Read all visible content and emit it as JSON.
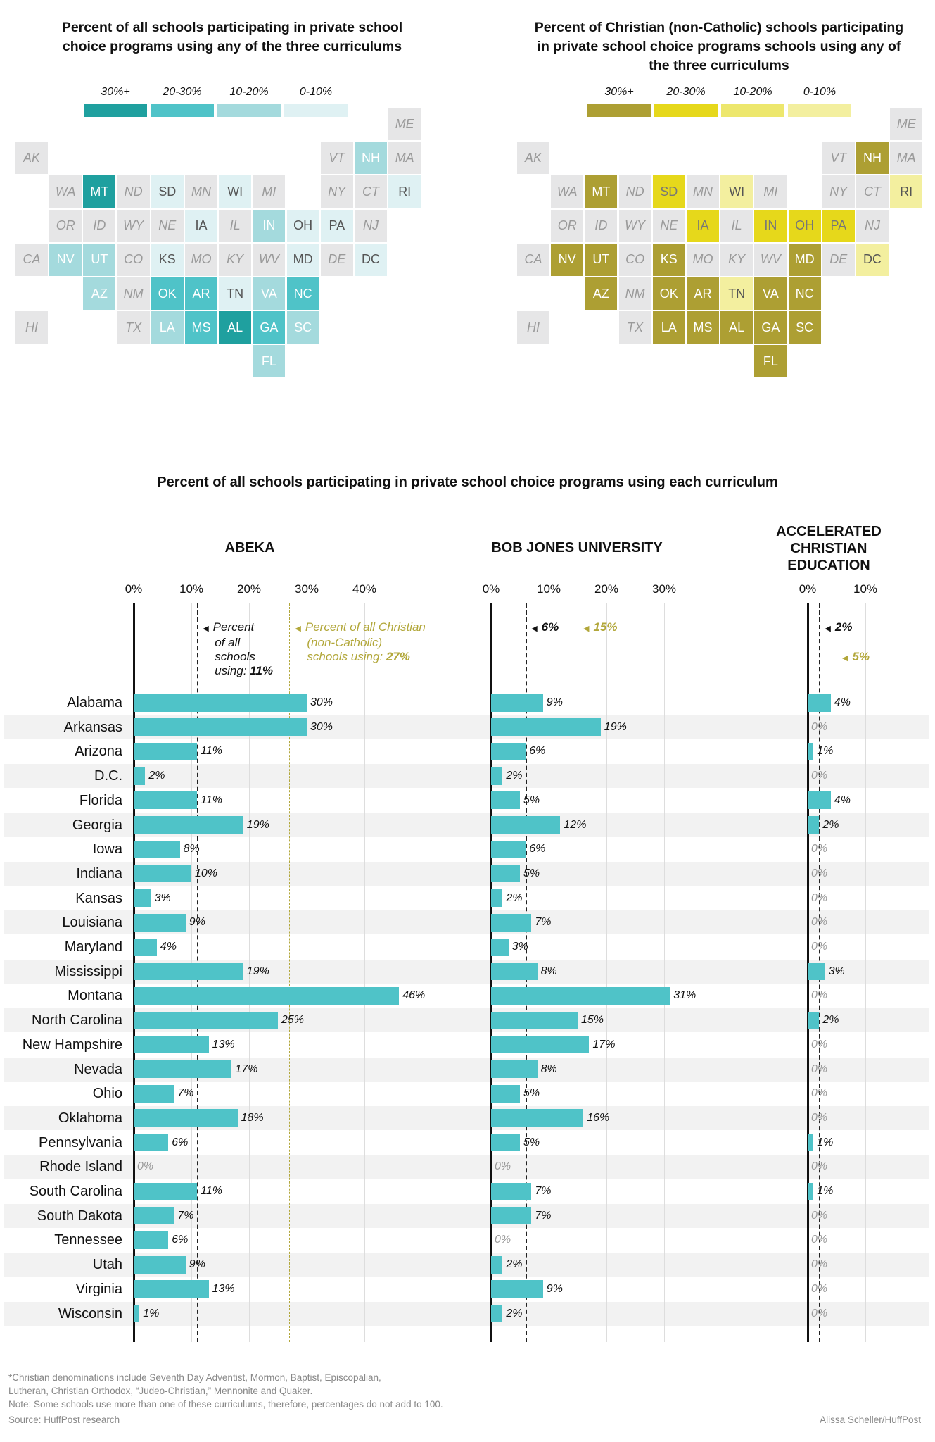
{
  "maps": [
    {
      "title": "Percent of all schools participating in private school choice programs using any of the three curriculums",
      "legend": [
        "30%+",
        "20-30%",
        "10-20%",
        "0-10%"
      ],
      "colors": {
        "30%+": "#1fa09f",
        "20-30%": "#4fc3c8",
        "10-20%": "#a4dadd",
        "0-10%": "#dff1f3"
      },
      "text_colors": {
        "30%+": "#ffffff",
        "20-30%": "#ffffff",
        "10-20%": "#ffffff",
        "0-10%": "#555555"
      },
      "tiers": {
        "MT": "30%+",
        "AL": "30%+",
        "OK": "20-30%",
        "AR": "20-30%",
        "MS": "20-30%",
        "GA": "20-30%",
        "NC": "20-30%",
        "NH": "10-20%",
        "IN": "10-20%",
        "NV": "10-20%",
        "UT": "10-20%",
        "AZ": "10-20%",
        "VA": "10-20%",
        "LA": "10-20%",
        "SC": "10-20%",
        "FL": "10-20%",
        "SD": "0-10%",
        "WI": "0-10%",
        "IA": "0-10%",
        "OH": "0-10%",
        "PA": "0-10%",
        "KS": "0-10%",
        "MD": "0-10%",
        "DC": "0-10%",
        "TN": "0-10%",
        "RI": "0-10%"
      }
    },
    {
      "title": "Percent of Christian (non-Catholic) schools participating in private school choice programs schools using any of the three curriculums",
      "legend": [
        "30%+",
        "20-30%",
        "10-20%",
        "0-10%"
      ],
      "colors": {
        "30%+": "#ad9f33",
        "20-30%": "#e6d81b",
        "10-20%": "#ede76d",
        "0-10%": "#f3ef9f"
      },
      "text_colors": {
        "30%+": "#ffffff",
        "20-30%": "#777777",
        "10-20%": "#555555",
        "0-10%": "#555555"
      },
      "tiers": {
        "NH": "30%+",
        "MT": "30%+",
        "NV": "30%+",
        "UT": "30%+",
        "KS": "30%+",
        "MD": "30%+",
        "AZ": "30%+",
        "OK": "30%+",
        "AR": "30%+",
        "VA": "30%+",
        "NC": "30%+",
        "LA": "30%+",
        "MS": "30%+",
        "AL": "30%+",
        "GA": "30%+",
        "SC": "30%+",
        "FL": "30%+",
        "SD": "20-30%",
        "IA": "20-30%",
        "IN": "20-30%",
        "OH": "20-30%",
        "PA": "20-30%",
        "WI": "0-10%",
        "TN": "0-10%",
        "RI": "0-10%",
        "DC": "0-10%"
      }
    }
  ],
  "chart_data": {
    "type": "bar",
    "title": "Percent of all schools participating in private school choice programs using each curriculum",
    "categories": [
      "Alabama",
      "Arkansas",
      "Arizona",
      "D.C.",
      "Florida",
      "Georgia",
      "Iowa",
      "Indiana",
      "Kansas",
      "Louisiana",
      "Maryland",
      "Mississippi",
      "Montana",
      "North Carolina",
      "New Hampshire",
      "Nevada",
      "Ohio",
      "Oklahoma",
      "Pennsylvania",
      "Rhode Island",
      "South Carolina",
      "South Dakota",
      "Tennessee",
      "Utah",
      "Virginia",
      "Wisconsin"
    ],
    "series": [
      {
        "name": "ABEKA",
        "values": [
          30,
          30,
          11,
          2,
          11,
          19,
          8,
          10,
          3,
          9,
          4,
          19,
          46,
          25,
          13,
          17,
          7,
          18,
          6,
          0,
          11,
          7,
          6,
          9,
          13,
          1
        ],
        "ticks": [
          0,
          10,
          20,
          30,
          40
        ],
        "ref_all": 11,
        "ref_christian": 27,
        "ann_all": [
          "Percent",
          "of all",
          "schools",
          "using: "
        ],
        "ann_all_value": "11%",
        "ann_christian": [
          "Percent of all Christian",
          "(non-Catholic)",
          "schools using: "
        ],
        "ann_christian_value": "27%"
      },
      {
        "name": "BOB JONES UNIVERSITY",
        "values": [
          9,
          19,
          6,
          2,
          5,
          12,
          6,
          5,
          2,
          7,
          3,
          8,
          31,
          15,
          17,
          8,
          5,
          16,
          5,
          0,
          7,
          7,
          0,
          2,
          9,
          2
        ],
        "ticks": [
          0,
          10,
          20,
          30
        ],
        "ref_all": 6,
        "ref_christian": 15,
        "ann_all_value": "6%",
        "ann_christian_value": "15%"
      },
      {
        "name": "ACCELERATED CHRISTIAN EDUCATION",
        "title_lines": [
          "ACCELERATED",
          "CHRISTIAN",
          "EDUCATION"
        ],
        "values": [
          4,
          0,
          1,
          0,
          4,
          2,
          0,
          0,
          0,
          0,
          0,
          3,
          0,
          2,
          0,
          0,
          0,
          0,
          1,
          0,
          1,
          0,
          0,
          0,
          0,
          0
        ],
        "ticks": [
          0,
          10
        ],
        "ref_all": 2,
        "ref_christian": 5,
        "ann_all_value": "2%",
        "ann_christian_value": "5%"
      }
    ],
    "bar_color": "#4fc3c8",
    "value_suffix": "%",
    "xlim": [
      0,
      50
    ]
  },
  "footer": {
    "notes": [
      "*Christian denominations include Seventh Day Adventist, Mormon, Baptist, Episcopalian,",
      " Lutheran, Christian Orthodox, “Judeo-Christian,” Mennonite and Quaker.",
      "Note: Some schools use more than one of these curriculums, therefore, percentages do not add to 100.",
      "Source: HuffPost research"
    ],
    "credit": "Alissa Scheller/HuffPost"
  }
}
